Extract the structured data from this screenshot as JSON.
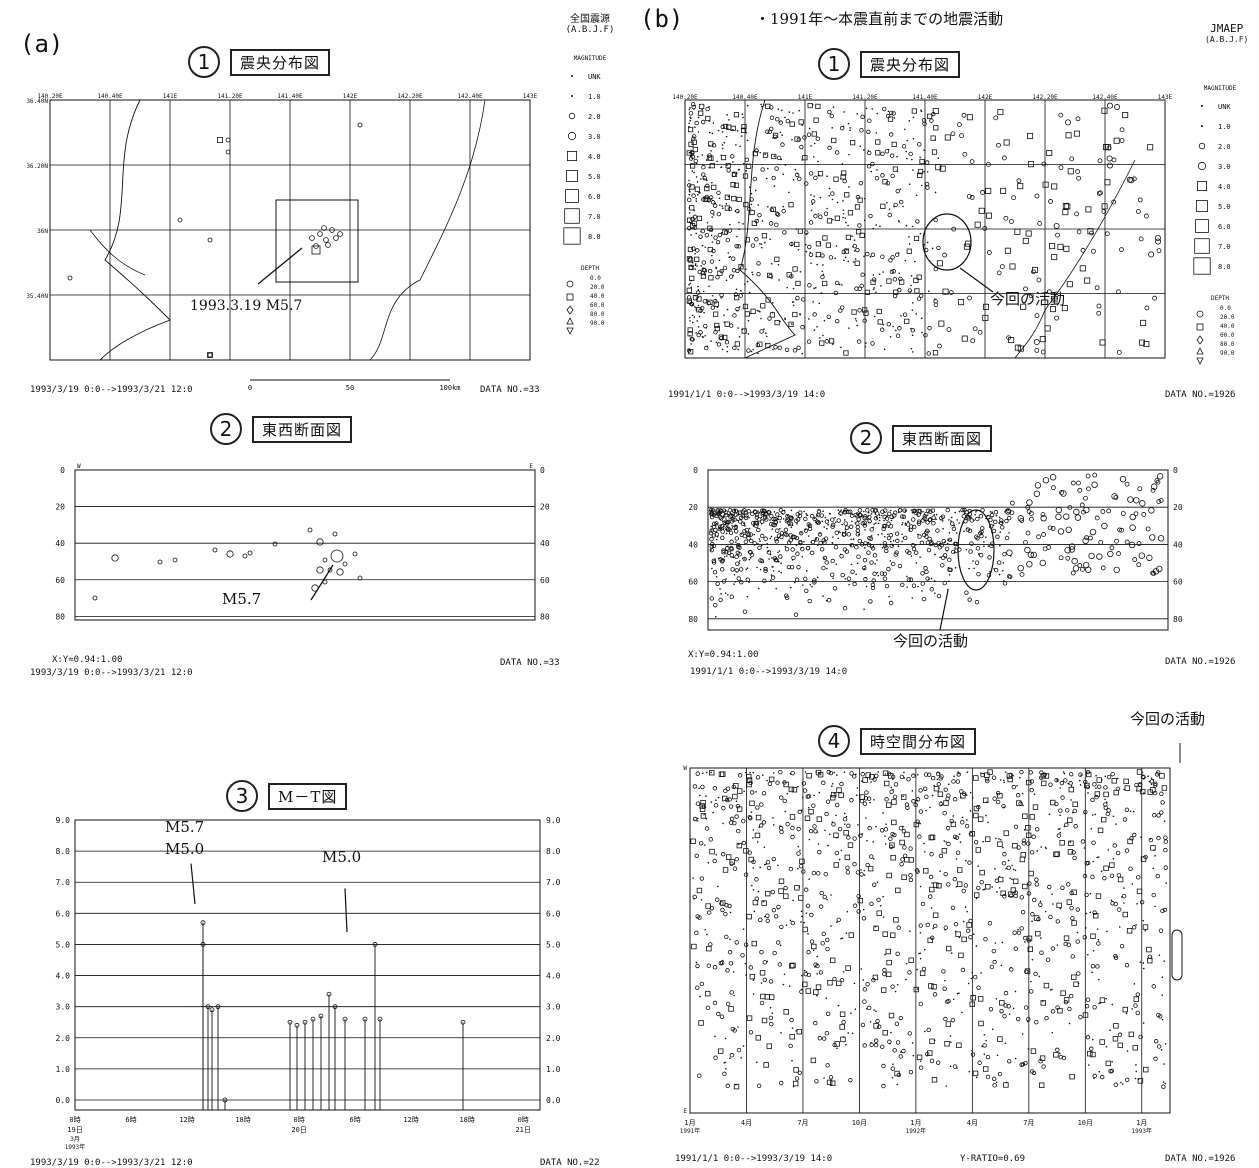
{
  "panel_a": {
    "label": "(a)",
    "map": {
      "num": "1",
      "title": "震央分布図",
      "annotation": "1993.3.19 M5.7",
      "footer_left": "1993/3/19 0:0-->1993/3/21 12:0",
      "footer_right": "DATA NO.=33",
      "scale_labels": [
        "0",
        "50",
        "100km"
      ]
    },
    "ew_section": {
      "num": "2",
      "title": "東西断面図",
      "annotation": "M5.7",
      "depth_ticks": [
        "0",
        "20",
        "40",
        "60",
        "80"
      ],
      "edge_labels": [
        "W",
        "E"
      ],
      "ratio": "X:Y=0.94:1.00",
      "footer_left": "1993/3/19 0:0-->1993/3/21 12:0",
      "footer_right": "DATA NO.=33"
    },
    "mt": {
      "num": "3",
      "title": "M－T図",
      "annotations": [
        "M5.7",
        "M5.0",
        "M5.0"
      ],
      "y_ticks": [
        "9.0",
        "8.0",
        "7.0",
        "6.0",
        "5.0",
        "4.0",
        "3.0",
        "2.0",
        "1.0",
        "0.0"
      ],
      "x_ticks": [
        "0時",
        "6時",
        "12時",
        "18時",
        "0時",
        "6時",
        "12時",
        "18時",
        "0時"
      ],
      "x_dates": [
        "19日",
        "20日",
        "21日"
      ],
      "x_first": [
        "3月",
        "1993年"
      ],
      "footer_left": "1993/3/19 0:0-->1993/3/21 12:0",
      "footer_right": "DATA NO.=22"
    }
  },
  "panel_b": {
    "label": "(b)",
    "heading": "・1991年～本震直前までの地震活動",
    "agency": "JMAEP",
    "agency_sub": "(A.B.J.F)",
    "map": {
      "num": "1",
      "title": "震央分布図",
      "annotation": "今回の活動",
      "footer_left": "1991/1/1 0:0-->1993/3/19 14:0",
      "footer_right": "DATA NO.=1926"
    },
    "ew_section": {
      "num": "2",
      "title": "東西断面図",
      "annotation": "今回の活動",
      "ratio": "X:Y=0.94:1.00",
      "footer_left": "1991/1/1 0:0-->1993/3/19 14:0",
      "footer_right": "DATA NO.=1926"
    },
    "spacetime": {
      "num": "4",
      "title": "時空間分布図",
      "annotation": "今回の活動",
      "x_ticks": [
        "1月",
        "4月",
        "7月",
        "10月",
        "1月",
        "4月",
        "7月",
        "10月",
        "1月"
      ],
      "x_years": [
        "1991年",
        "1992年",
        "1993年"
      ],
      "edge_labels": [
        "W",
        "E"
      ],
      "ratio": "Y-RATIO=0.69",
      "footer_left": "1991/1/1 0:0-->1993/3/19 14:0",
      "footer_right": "DATA NO.=1926"
    }
  },
  "legend_a": {
    "title": "全国震源",
    "sub": "(A.B.J.F)",
    "mag_label": "MAGNITUDE",
    "mags": [
      "UNK",
      "1.0",
      "2.0",
      "3.0",
      "4.0",
      "5.0",
      "6.0",
      "7.0",
      "8.0"
    ],
    "depth_label": "DEPTH",
    "depths": [
      "0.0",
      "20.0",
      "40.0",
      "60.0",
      "80.0",
      "90.0"
    ]
  },
  "legend_b": {
    "mag_label": "MAGNITUDE",
    "mags": [
      "UNK",
      "1.0",
      "2.0",
      "3.0",
      "4.0",
      "5.0",
      "6.0",
      "7.0",
      "8.0"
    ],
    "depth_label": "DEPTH",
    "depths": [
      "0.0",
      "20.0",
      "40.0",
      "60.0",
      "80.0",
      "90.0"
    ]
  },
  "map_ticks": {
    "lon": [
      "140.20E",
      "140.40E",
      "141E",
      "141.20E",
      "141.40E",
      "142E",
      "142.20E",
      "142.40E",
      "143E"
    ],
    "lat": [
      "36.40N",
      "36.20N",
      "36N",
      "35.40N"
    ]
  }
}
